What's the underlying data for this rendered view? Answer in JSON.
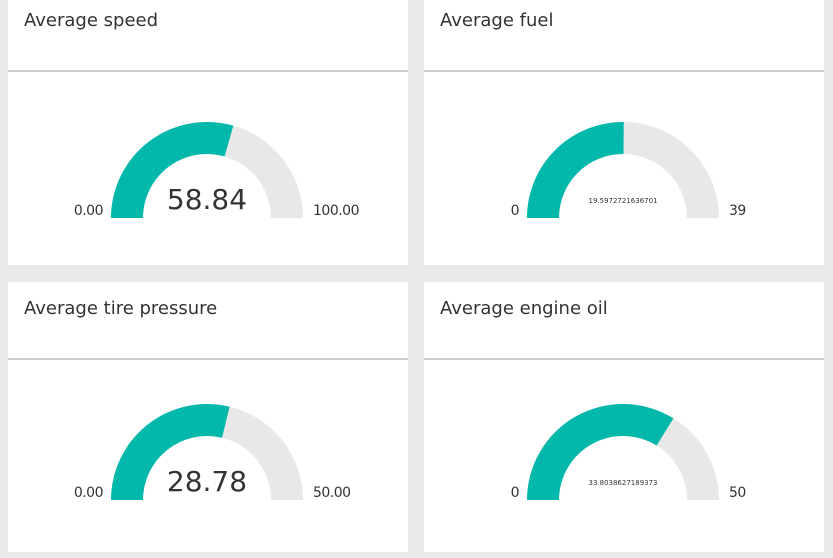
{
  "chart_data": [
    {
      "type": "gauge",
      "title": "Average speed",
      "value": 58.84,
      "color": "#01b8aa",
      "ylim": [
        0,
        100
      ],
      "yticks": [
        {
          "value": 0,
          "label": "0.00"
        },
        {
          "value": 100,
          "label": "100.00"
        }
      ]
    },
    {
      "type": "gauge",
      "title": "Average fuel",
      "value": 19.5972721636701,
      "color": "#01b8aa",
      "ylim": [
        0,
        39
      ],
      "yticks": [
        0,
        39
      ]
    },
    {
      "type": "gauge",
      "title": "Average tire pressure",
      "value": 28.78,
      "color": "#01b8aa",
      "ylim": [
        0,
        50
      ],
      "yticks": [
        {
          "value": 0,
          "label": "0.00"
        },
        {
          "value": 50,
          "label": "50.00"
        }
      ]
    },
    {
      "type": "gauge",
      "title": "Average engine oil",
      "value": 33.8038627189373,
      "color": "#01b8aa",
      "ylim": [
        0,
        50
      ],
      "yticks": [
        0,
        50
      ]
    }
  ]
}
